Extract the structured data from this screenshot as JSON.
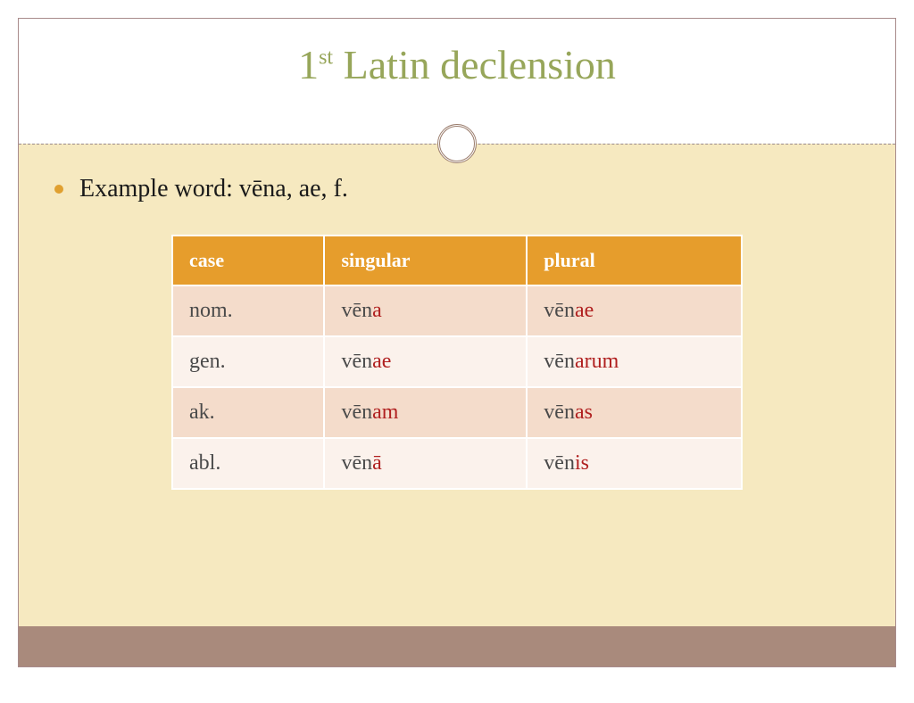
{
  "title": {
    "number": "1",
    "ordinal_suffix": "st",
    "rest": " Latin declension",
    "color": "#97a65a",
    "fontsize": 46
  },
  "bullet": {
    "text": "Example word: vēna, ae, f.",
    "dot_color": "#e0a030",
    "fontsize": 28
  },
  "table": {
    "header_bg": "#e69d2c",
    "header_fg": "#ffffff",
    "row_odd_bg": "#f4dccb",
    "row_even_bg": "#fbf2ec",
    "stem_color": "#4a4a4a",
    "ending_color": "#b02020",
    "columns": [
      "case",
      "singular",
      "plural"
    ],
    "rows": [
      {
        "case": "nom.",
        "singular": {
          "stem": "vēn",
          "end": "a"
        },
        "plural": {
          "stem": "vēn",
          "end": "ae"
        }
      },
      {
        "case": "gen.",
        "singular": {
          "stem": "vēn",
          "end": "ae"
        },
        "plural": {
          "stem": "vēn",
          "end": "arum"
        }
      },
      {
        "case": "ak.",
        "singular": {
          "stem": "vēn",
          "end": "am"
        },
        "plural": {
          "stem": "vēn",
          "end": "as"
        }
      },
      {
        "case": "abl.",
        "singular": {
          "stem": "vēn",
          "end": "ā"
        },
        "plural": {
          "stem": "vēn",
          "end": "is"
        }
      }
    ]
  },
  "theme": {
    "body_bg": "#f6e9c0",
    "footer_bg": "#a98a7c",
    "border_color": "#a88b8b",
    "dashed_color": "#9a8a8a"
  }
}
